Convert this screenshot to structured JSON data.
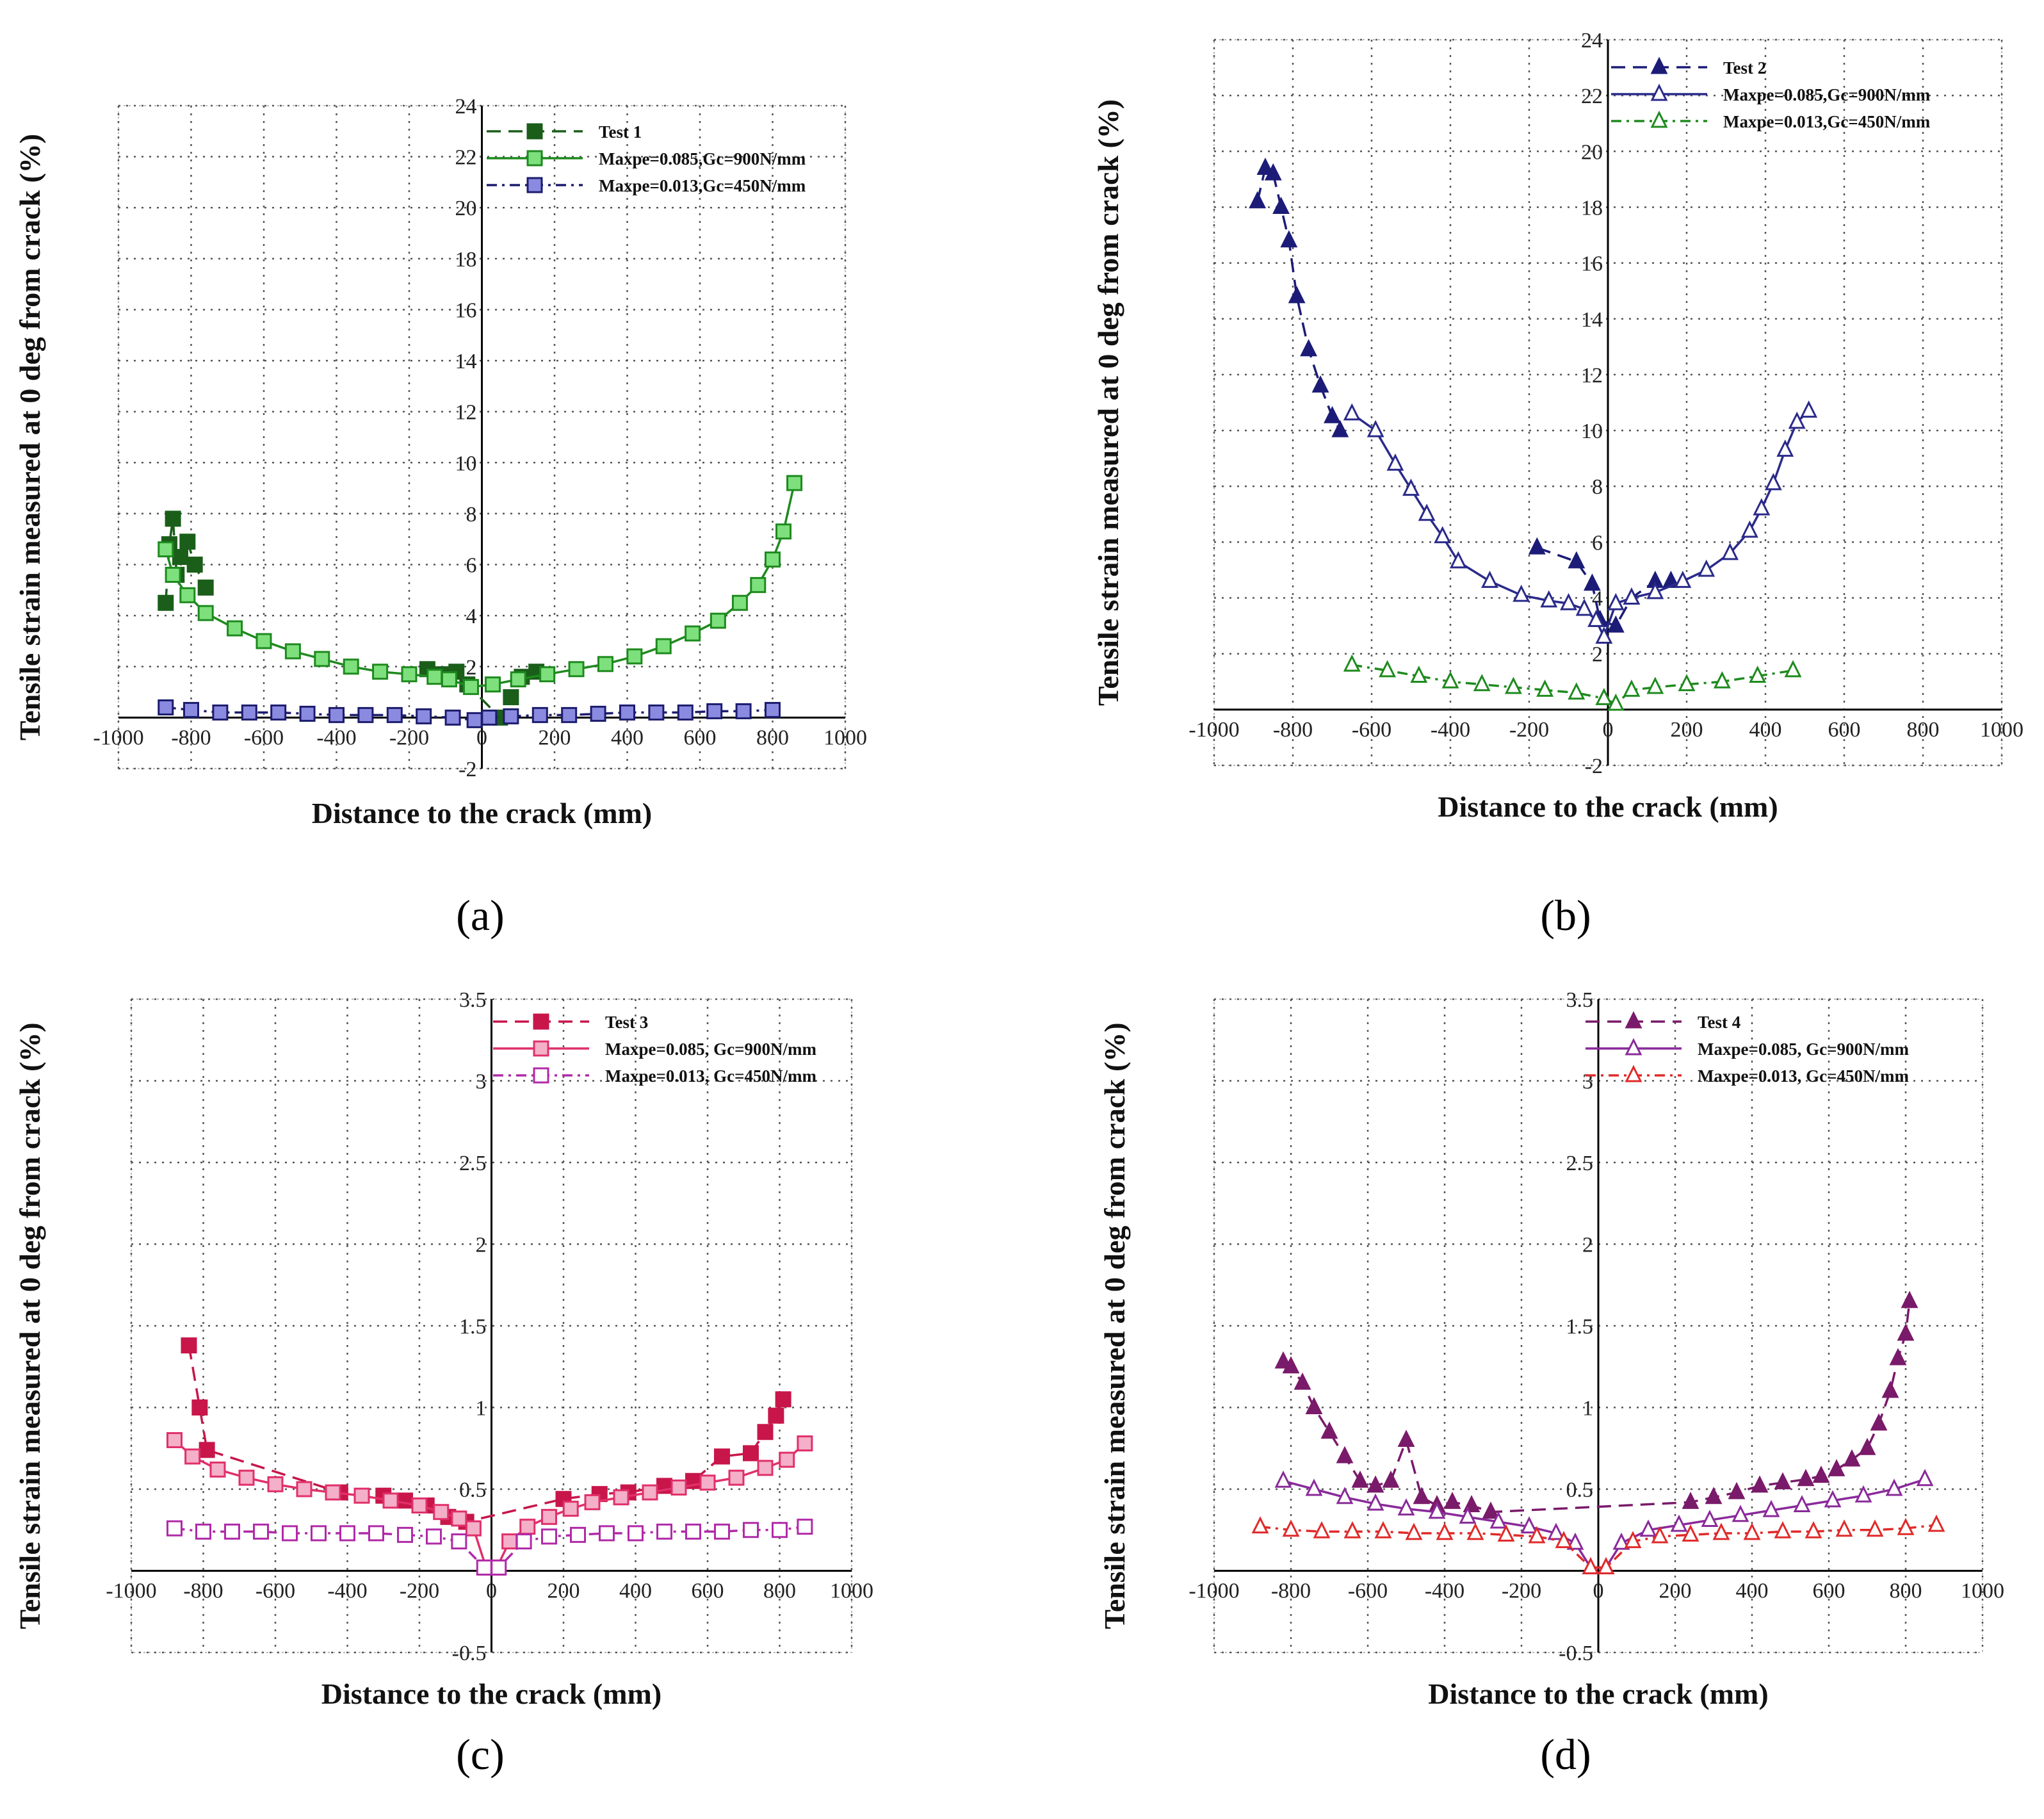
{
  "captions": [
    "(a)",
    "(b)",
    "(c)",
    "(d)"
  ],
  "chart_data": [
    {
      "type": "line",
      "panel": "a",
      "xlabel": "Distance to the crack (mm)",
      "ylabel": "Tensile strain measured at 0 deg from crack (%)",
      "xlim": [
        -1000,
        1000
      ],
      "ylim": [
        -2,
        24
      ],
      "xticks": [
        -1000,
        -800,
        -600,
        -400,
        -200,
        0,
        200,
        400,
        600,
        800,
        1000
      ],
      "yticks": [
        -2,
        2,
        4,
        6,
        8,
        10,
        12,
        14,
        16,
        18,
        20,
        22,
        24
      ],
      "legend": "top-right",
      "series": [
        {
          "name": "Test 1",
          "color": "#1a5e1a",
          "marker": "square-filled",
          "dash": "dashed",
          "x": [
            -870,
            -860,
            -850,
            -840,
            -830,
            -810,
            -790,
            -760
          ],
          "y": [
            4.5,
            6.8,
            7.8,
            5.6,
            6.3,
            6.9,
            6.0,
            5.1
          ],
          "extra": {
            "x": [
              -150,
              -110,
              -70,
              -40,
              50,
              80,
              110,
              150
            ],
            "y": [
              1.9,
              1.7,
              1.8,
              1.3,
              0.0,
              0.8,
              1.6,
              1.8
            ]
          }
        },
        {
          "name": "Maxpe=0.085,Gc=900N/mm",
          "color": "#1e8a1e",
          "fill": "#7de07d",
          "marker": "square-open",
          "dash": "solid",
          "x": [
            -870,
            -850,
            -810,
            -760,
            -680,
            -600,
            -520,
            -440,
            -360,
            -280,
            -200,
            -130,
            -90,
            -30,
            30,
            100,
            180,
            260,
            340,
            420,
            500,
            580,
            650,
            710,
            760,
            800,
            830,
            860
          ],
          "y": [
            6.6,
            5.6,
            4.8,
            4.1,
            3.5,
            3.0,
            2.6,
            2.3,
            2.0,
            1.8,
            1.7,
            1.6,
            1.5,
            1.2,
            1.3,
            1.5,
            1.7,
            1.9,
            2.1,
            2.4,
            2.8,
            3.3,
            3.8,
            4.5,
            5.2,
            6.2,
            7.3,
            9.2
          ]
        },
        {
          "name": "Maxpe=0.013,Gc=450N/mm",
          "color": "#1c1c6e",
          "fill": "#8a8ae0",
          "marker": "square-open",
          "dash": "dashdot",
          "x": [
            -870,
            -800,
            -720,
            -640,
            -560,
            -480,
            -400,
            -320,
            -240,
            -160,
            -80,
            -20,
            20,
            80,
            160,
            240,
            320,
            400,
            480,
            560,
            640,
            720,
            800
          ],
          "y": [
            0.4,
            0.3,
            0.2,
            0.2,
            0.2,
            0.15,
            0.1,
            0.1,
            0.1,
            0.05,
            0.0,
            -0.1,
            0.0,
            0.05,
            0.1,
            0.1,
            0.15,
            0.2,
            0.2,
            0.2,
            0.25,
            0.25,
            0.3
          ]
        }
      ]
    },
    {
      "type": "line",
      "panel": "b",
      "xlabel": "Distance to the crack (mm)",
      "ylabel": "Tensile strain measured at 0 deg from crack (%)",
      "xlim": [
        -1000,
        1000
      ],
      "ylim": [
        -2,
        24
      ],
      "xticks": [
        -1000,
        -800,
        -600,
        -400,
        -200,
        0,
        200,
        400,
        600,
        800,
        1000
      ],
      "yticks": [
        -2,
        2,
        4,
        6,
        8,
        10,
        12,
        14,
        16,
        18,
        20,
        22,
        24
      ],
      "legend": "top-right",
      "series": [
        {
          "name": "Test 2",
          "color": "#1c1c78",
          "marker": "triangle-filled",
          "dash": "dashed",
          "x": [
            -890,
            -870,
            -850,
            -830,
            -810,
            -790,
            -760,
            -730,
            -700,
            -680
          ],
          "y": [
            18.2,
            19.4,
            19.2,
            18.0,
            16.8,
            14.8,
            12.9,
            11.6,
            10.5,
            10.0
          ],
          "extra": {
            "x": [
              -180,
              -80,
              -40,
              -20,
              20,
              60,
              120,
              160
            ],
            "y": [
              5.8,
              5.3,
              4.5,
              3.2,
              3.0,
              4.0,
              4.6,
              4.6
            ]
          }
        },
        {
          "name": "Maxpe=0.085,Gc=900N/mm",
          "color": "#2a2a8a",
          "fill": "#ffffff",
          "marker": "triangle-open",
          "dash": "solid",
          "x": [
            -650,
            -590,
            -540,
            -500,
            -460,
            -420,
            -380,
            -300,
            -220,
            -150,
            -100,
            -60,
            -30,
            -10,
            20,
            60,
            120,
            190,
            250,
            310,
            360,
            390,
            420,
            450,
            480,
            510
          ],
          "y": [
            10.6,
            10.0,
            8.8,
            7.9,
            7.0,
            6.2,
            5.3,
            4.6,
            4.1,
            3.9,
            3.8,
            3.6,
            3.2,
            2.6,
            3.8,
            4.0,
            4.2,
            4.6,
            5.0,
            5.6,
            6.4,
            7.2,
            8.1,
            9.3,
            10.3,
            10.7
          ]
        },
        {
          "name": "Maxpe=0.013,Gc=450N/mm",
          "color": "#1e8a1e",
          "fill": "#ffffff",
          "marker": "triangle-open",
          "dash": "dashdot",
          "x": [
            -650,
            -560,
            -480,
            -400,
            -320,
            -240,
            -160,
            -80,
            -10,
            20,
            60,
            120,
            200,
            290,
            380,
            470
          ],
          "y": [
            1.6,
            1.4,
            1.2,
            1.0,
            0.9,
            0.8,
            0.7,
            0.6,
            0.4,
            0.2,
            0.7,
            0.8,
            0.9,
            1.0,
            1.2,
            1.4
          ]
        }
      ]
    },
    {
      "type": "line",
      "panel": "c",
      "xlabel": "Distance to the crack (mm)",
      "ylabel": "Tensile strain measured at 0 deg from crack (%)",
      "xlim": [
        -1000,
        1000
      ],
      "ylim": [
        -0.5,
        3.5
      ],
      "xticks": [
        -1000,
        -800,
        -600,
        -400,
        -200,
        0,
        200,
        400,
        600,
        800,
        1000
      ],
      "yticks": [
        -0.5,
        0.5,
        1,
        1.5,
        2,
        2.5,
        3,
        3.5
      ],
      "legend": "top-right",
      "series": [
        {
          "name": "Test 3",
          "color": "#c8164a",
          "marker": "square-filled",
          "dash": "dashed",
          "x": [
            -840,
            -810,
            -790,
            -420,
            -300,
            -240,
            -180,
            -120,
            -70,
            200,
            300,
            380,
            480,
            560,
            640,
            720,
            760,
            790,
            810
          ],
          "y": [
            1.38,
            1.0,
            0.74,
            0.48,
            0.46,
            0.43,
            0.4,
            0.33,
            0.3,
            0.44,
            0.47,
            0.48,
            0.52,
            0.55,
            0.7,
            0.72,
            0.85,
            0.95,
            1.05
          ]
        },
        {
          "name": "Maxpe=0.085, Gc=900N/mm",
          "color": "#e0306a",
          "fill": "#f4b0c8",
          "marker": "square-open",
          "dash": "solid",
          "x": [
            -880,
            -830,
            -760,
            -680,
            -600,
            -520,
            -440,
            -360,
            -280,
            -200,
            -140,
            -90,
            -50,
            -15,
            15,
            50,
            100,
            160,
            220,
            280,
            360,
            440,
            520,
            600,
            680,
            760,
            820,
            870
          ],
          "y": [
            0.8,
            0.7,
            0.62,
            0.57,
            0.53,
            0.5,
            0.48,
            0.46,
            0.43,
            0.4,
            0.36,
            0.32,
            0.26,
            0.02,
            0.02,
            0.18,
            0.27,
            0.33,
            0.38,
            0.42,
            0.45,
            0.48,
            0.51,
            0.54,
            0.57,
            0.63,
            0.68,
            0.78
          ]
        },
        {
          "name": "Maxpe=0.013, Gc=450N/mm",
          "color": "#b02aa8",
          "fill": "#ffffff",
          "marker": "square-open",
          "dash": "dashdot",
          "x": [
            -880,
            -800,
            -720,
            -640,
            -560,
            -480,
            -400,
            -320,
            -240,
            -160,
            -90,
            -20,
            20,
            90,
            160,
            240,
            320,
            400,
            480,
            560,
            640,
            720,
            800,
            870
          ],
          "y": [
            0.26,
            0.24,
            0.24,
            0.24,
            0.23,
            0.23,
            0.23,
            0.23,
            0.22,
            0.21,
            0.18,
            0.02,
            0.02,
            0.18,
            0.21,
            0.22,
            0.23,
            0.23,
            0.24,
            0.24,
            0.24,
            0.25,
            0.25,
            0.27
          ]
        }
      ]
    },
    {
      "type": "line",
      "panel": "d",
      "xlabel": "Distance to the crack (mm)",
      "ylabel": "Tensile strain measured at 0 deg from crack (%)",
      "xlim": [
        -1000,
        1000
      ],
      "ylim": [
        -0.5,
        3.5
      ],
      "xticks": [
        -1000,
        -800,
        -600,
        -400,
        -200,
        0,
        200,
        400,
        600,
        800,
        1000
      ],
      "yticks": [
        -0.5,
        0.5,
        1,
        1.5,
        2,
        2.5,
        3,
        3.5
      ],
      "legend": "top-right",
      "series": [
        {
          "name": "Test 4",
          "color": "#7a1a6a",
          "marker": "triangle-filled",
          "dash": "dashed",
          "x": [
            -820,
            -800,
            -770,
            -740,
            -700,
            -660,
            -620,
            -580,
            -540,
            -500,
            -460,
            -420,
            -380,
            -330,
            -280,
            240,
            300,
            360,
            420,
            480,
            540,
            580,
            620,
            660,
            700,
            730,
            760,
            780,
            800,
            810
          ],
          "y": [
            1.28,
            1.25,
            1.15,
            1.0,
            0.85,
            0.7,
            0.55,
            0.52,
            0.55,
            0.8,
            0.45,
            0.4,
            0.42,
            0.4,
            0.36,
            0.42,
            0.45,
            0.48,
            0.52,
            0.54,
            0.56,
            0.58,
            0.62,
            0.68,
            0.75,
            0.9,
            1.1,
            1.3,
            1.45,
            1.65
          ]
        },
        {
          "name": "Maxpe=0.085, Gc=900N/mm",
          "color": "#8a2a9a",
          "fill": "#ffffff",
          "marker": "triangle-open",
          "dash": "solid",
          "x": [
            -820,
            -740,
            -660,
            -580,
            -500,
            -420,
            -340,
            -260,
            -180,
            -110,
            -60,
            -20,
            20,
            60,
            130,
            210,
            290,
            370,
            450,
            530,
            610,
            690,
            770,
            850
          ],
          "y": [
            0.55,
            0.5,
            0.45,
            0.41,
            0.38,
            0.36,
            0.33,
            0.3,
            0.27,
            0.23,
            0.17,
            0.02,
            0.02,
            0.17,
            0.25,
            0.28,
            0.31,
            0.34,
            0.37,
            0.4,
            0.43,
            0.46,
            0.5,
            0.56
          ]
        },
        {
          "name": "Maxpe=0.013, Gc=450N/mm",
          "color": "#e02a2a",
          "fill": "#ffffff",
          "marker": "triangle-open",
          "dash": "dashdot",
          "x": [
            -880,
            -800,
            -720,
            -640,
            -560,
            -480,
            -400,
            -320,
            -240,
            -160,
            -90,
            -20,
            20,
            90,
            160,
            240,
            320,
            400,
            480,
            560,
            640,
            720,
            800,
            880
          ],
          "y": [
            0.27,
            0.25,
            0.24,
            0.24,
            0.24,
            0.23,
            0.23,
            0.23,
            0.22,
            0.21,
            0.18,
            0.02,
            0.02,
            0.18,
            0.21,
            0.22,
            0.23,
            0.23,
            0.24,
            0.24,
            0.25,
            0.25,
            0.26,
            0.28
          ]
        }
      ]
    }
  ]
}
